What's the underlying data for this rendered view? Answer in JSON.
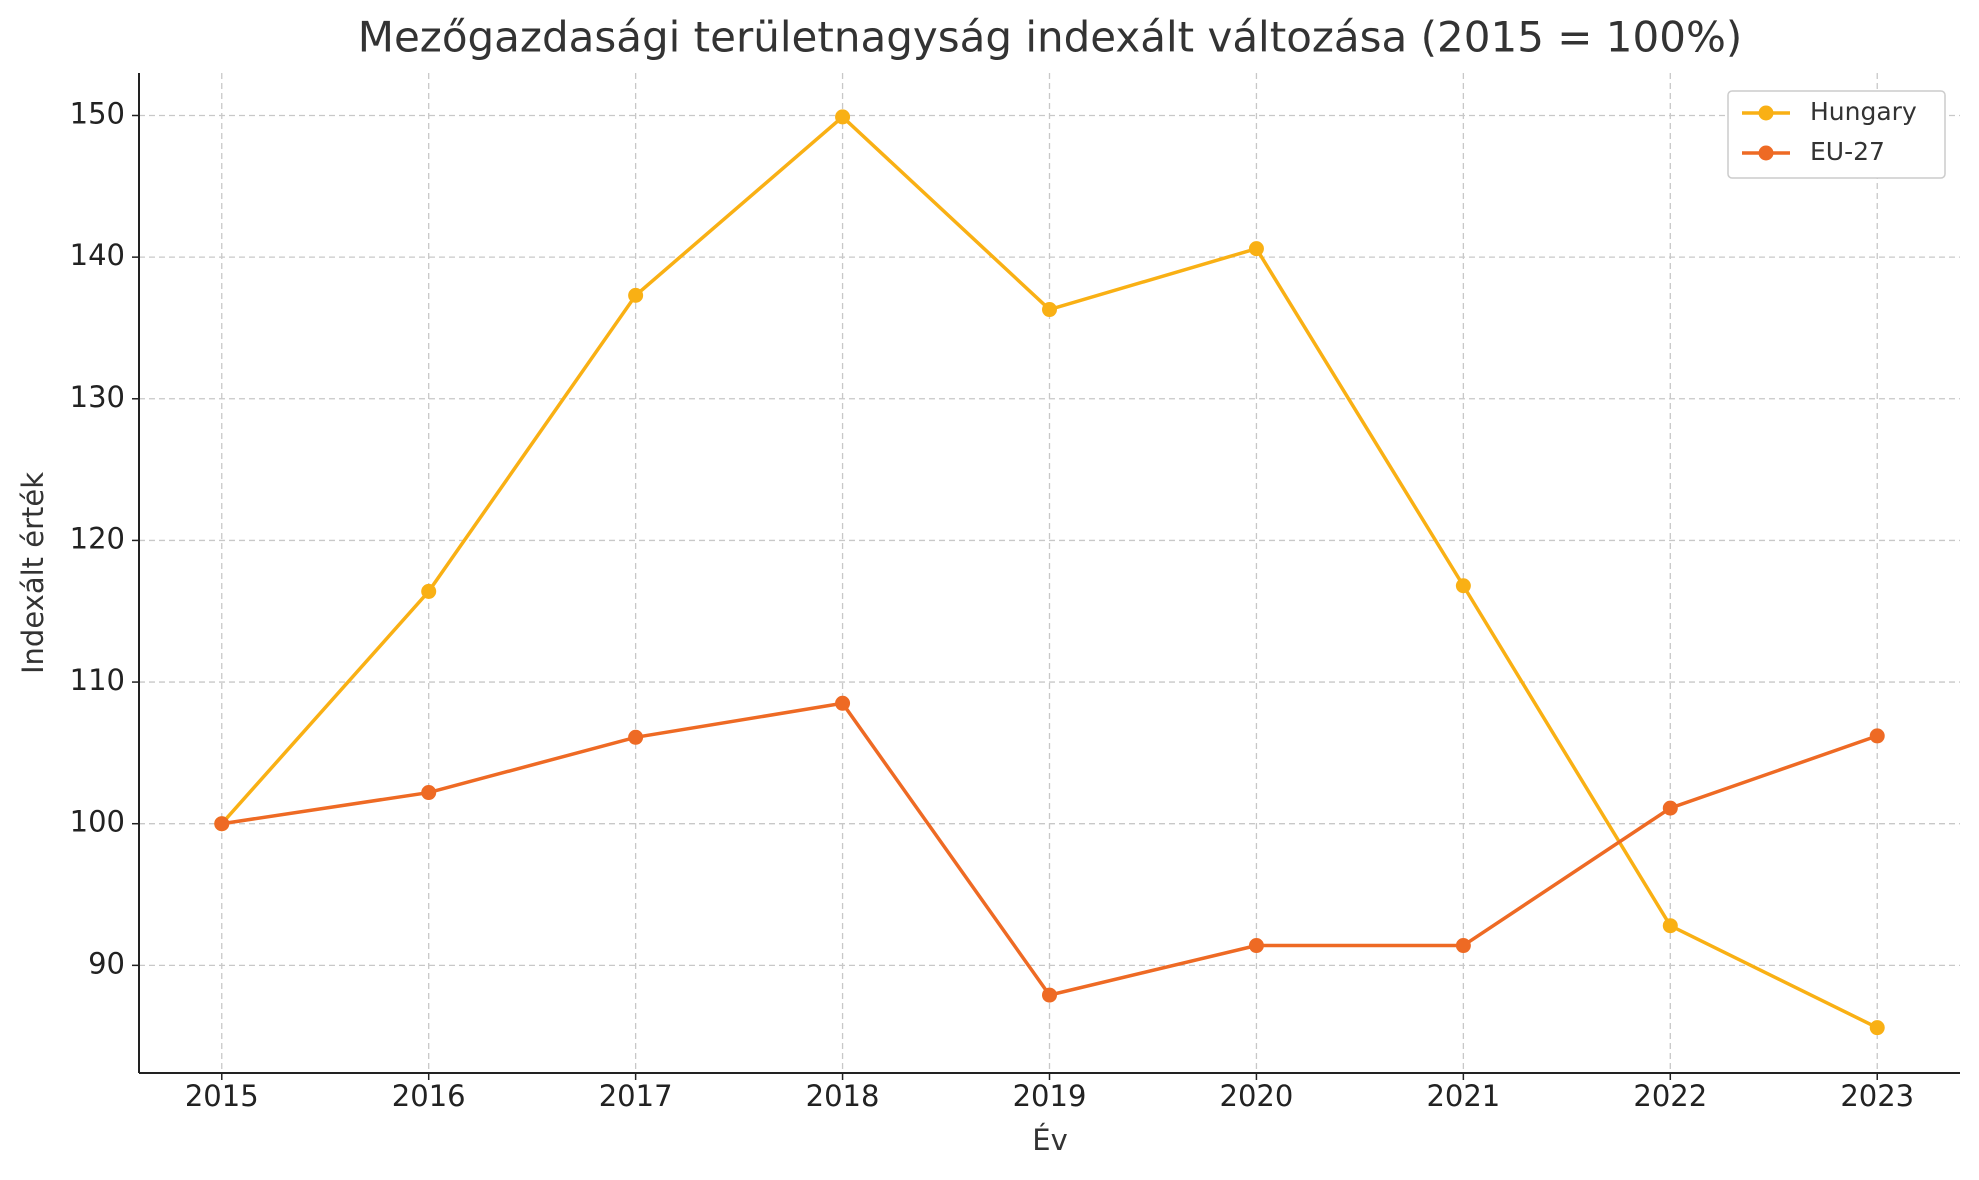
{
  "chart_data": {
    "type": "line",
    "title": "Mezőgazdasági területnagyság indexált változása (2015 = 100%)",
    "xlabel": "Év",
    "ylabel": "Indexált érték",
    "x": [
      2015,
      2016,
      2017,
      2018,
      2019,
      2020,
      2021,
      2022,
      2023
    ],
    "series": [
      {
        "name": "Hungary",
        "color": "#f9b014",
        "values": [
          100,
          116.4,
          137.3,
          149.9,
          136.3,
          140.6,
          116.8,
          92.8,
          85.6
        ]
      },
      {
        "name": "EU-27",
        "color": "#ee6a24",
        "values": [
          100,
          102.2,
          106.1,
          108.5,
          87.9,
          91.4,
          91.4,
          101.1,
          106.2
        ]
      }
    ],
    "xlim": [
      2014.6,
      2023.4
    ],
    "xticks": [
      2015,
      2016,
      2017,
      2018,
      2019,
      2020,
      2021,
      2022,
      2023
    ],
    "ylim": [
      82.4,
      153.0
    ],
    "yticks": [
      90,
      100,
      110,
      120,
      130,
      140,
      150
    ],
    "grid": true,
    "legend": "upper right"
  }
}
